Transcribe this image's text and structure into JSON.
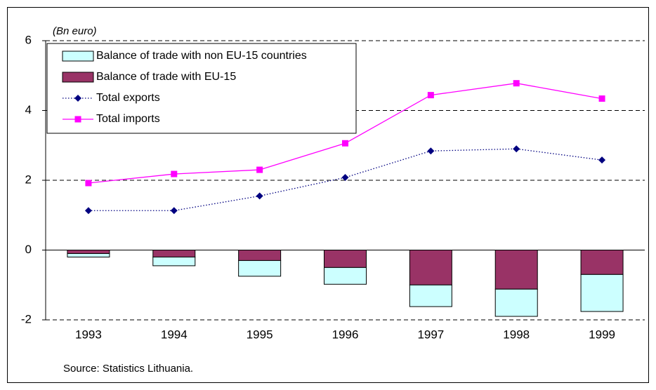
{
  "chart_data": {
    "type": "combo",
    "y_axis_label": "(Bn euro)",
    "source": "Source: Statistics Lithuania.",
    "categories": [
      "1993",
      "1994",
      "1995",
      "1996",
      "1997",
      "1998",
      "1999"
    ],
    "series": [
      {
        "name": "Balance of trade with non EU-15 countries",
        "type": "bar",
        "color": "#ccffff",
        "values": [
          -0.1,
          -0.25,
          -0.45,
          -0.48,
          -0.62,
          -0.78,
          -1.06
        ]
      },
      {
        "name": "Balance of trade with EU-15",
        "type": "bar",
        "color": "#993366",
        "values": [
          -0.1,
          -0.2,
          -0.3,
          -0.5,
          -1.0,
          -1.12,
          -0.7
        ]
      },
      {
        "name": "Total exports",
        "type": "line",
        "color": "#000080",
        "line_style": "dotted",
        "marker": "diamond",
        "values": [
          1.13,
          1.13,
          1.55,
          2.08,
          2.84,
          2.9,
          2.58
        ]
      },
      {
        "name": "Total imports",
        "type": "line",
        "color": "#ff00ff",
        "line_style": "solid",
        "marker": "square",
        "values": [
          1.92,
          2.18,
          2.3,
          3.06,
          4.44,
          4.78,
          4.34
        ]
      }
    ],
    "ylim": [
      -2,
      6
    ],
    "yticks": [
      -2,
      0,
      2,
      4,
      6
    ],
    "grid": true,
    "legend": "top-left"
  }
}
